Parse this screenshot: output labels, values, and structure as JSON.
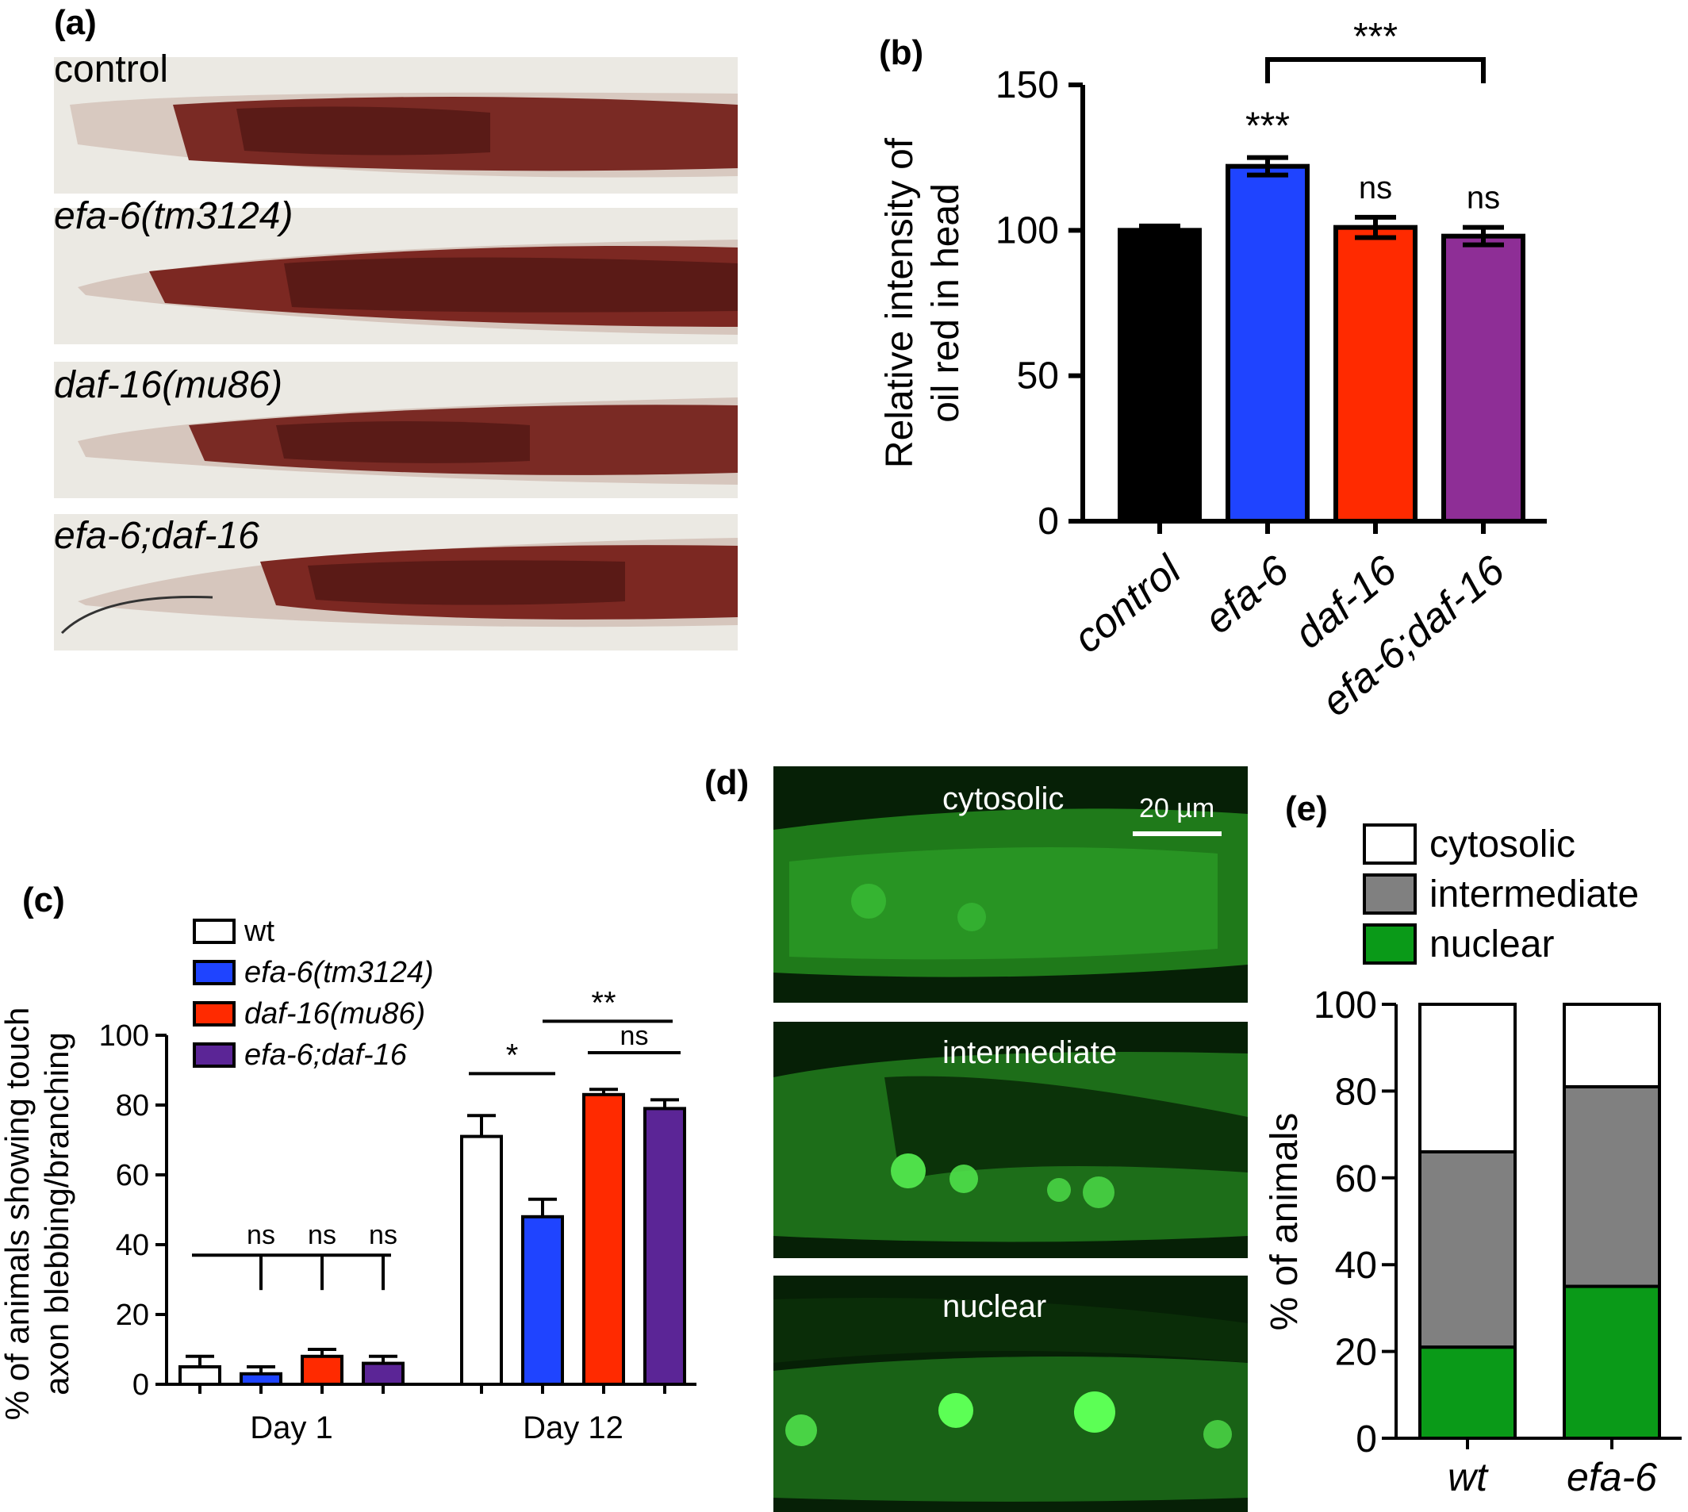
{
  "panels": {
    "a": {
      "label": "(a)",
      "strains": [
        "control",
        "efa-6(tm3124)",
        "daf-16(mu86)",
        "efa-6;daf-16"
      ]
    },
    "b": {
      "label": "(b)"
    },
    "c": {
      "label": "(c)"
    },
    "d": {
      "label": "(d)",
      "images": [
        "cytosolic",
        "intermediate",
        "nuclear"
      ],
      "scale_bar": "20 µm"
    },
    "e": {
      "label": "(e)"
    }
  },
  "chart_data": [
    {
      "id": "b",
      "type": "bar",
      "categories": [
        "control",
        "efa-6",
        "daf-16",
        "efa-6;daf-16"
      ],
      "values": [
        100,
        122,
        101,
        98
      ],
      "errors": [
        1.5,
        3,
        3.5,
        3
      ],
      "colors": [
        "#000000",
        "#1f44ff",
        "#ff2a00",
        "#8e2e96"
      ],
      "ylabel_lines": [
        "Relative intensity of",
        "oil red in head"
      ],
      "ylim": [
        0,
        150
      ],
      "yticks": [
        0,
        50,
        100,
        150
      ],
      "annotations": [
        "***",
        "ns",
        "ns"
      ],
      "bracket_label": "***"
    },
    {
      "id": "c",
      "type": "bar",
      "groups": [
        "Day 1",
        "Day 12"
      ],
      "series": [
        {
          "name": "wt",
          "values": [
            5,
            71
          ],
          "errors": [
            3,
            6
          ],
          "color": "#ffffff"
        },
        {
          "name": "efa-6(tm3124)",
          "values": [
            3,
            48
          ],
          "errors": [
            2,
            5
          ],
          "color": "#1f44ff"
        },
        {
          "name": "daf-16(mu86)",
          "values": [
            8,
            83
          ],
          "errors": [
            2,
            1.5
          ],
          "color": "#ff2a00"
        },
        {
          "name": "efa-6;daf-16",
          "values": [
            6,
            79
          ],
          "errors": [
            2,
            2.5
          ],
          "color": "#5b2596"
        }
      ],
      "ylabel_lines": [
        "% of animals showing touch",
        "axon blebbing/branching"
      ],
      "ylim": [
        0,
        100
      ],
      "yticks": [
        0,
        20,
        40,
        60,
        80,
        100
      ],
      "annotations": {
        "day1": [
          "ns",
          "ns",
          "ns"
        ],
        "day12": [
          "*",
          "**",
          "ns"
        ]
      }
    },
    {
      "id": "e",
      "type": "bar",
      "stacked": true,
      "categories": [
        "wt",
        "efa-6"
      ],
      "series": [
        {
          "name": "nuclear",
          "values": [
            21,
            35
          ],
          "color": "#0a9a18"
        },
        {
          "name": "intermediate",
          "values": [
            45,
            46
          ],
          "color": "#808080"
        },
        {
          "name": "cytosolic",
          "values": [
            34,
            19
          ],
          "color": "#ffffff"
        }
      ],
      "legend_order": [
        "cytosolic",
        "intermediate",
        "nuclear"
      ],
      "ylabel": "% of animals",
      "ylim": [
        0,
        100
      ],
      "yticks": [
        0,
        20,
        40,
        60,
        80,
        100
      ]
    }
  ]
}
